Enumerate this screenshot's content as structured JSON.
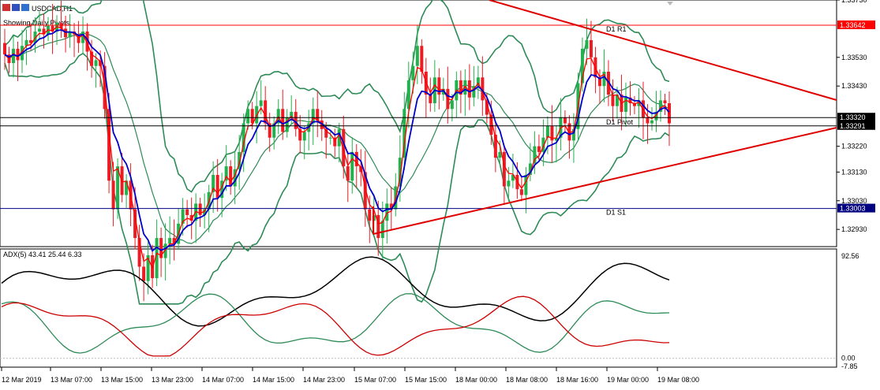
{
  "window": {
    "symbol_title": "USDCAD,H1",
    "subtitle": "Showing Daily Pivots."
  },
  "chart_data": [
    {
      "type": "candlestick",
      "title": "USDCAD,H1",
      "ylim": [
        1.3287,
        1.3373
      ],
      "y_ticks": [
        "1.33730",
        "1.33530",
        "1.33430",
        "1.33220",
        "1.33130",
        "1.33030",
        "1.32930"
      ],
      "x_ticks": [
        "12 Mar 2019",
        "13 Mar 07:00",
        "13 Mar 15:00",
        "13 Mar 23:00",
        "14 Mar 07:00",
        "14 Mar 15:00",
        "14 Mar 23:00",
        "15 Mar 07:00",
        "15 Mar 15:00",
        "18 Mar 00:00",
        "18 Mar 08:00",
        "18 Mar 16:00",
        "19 Mar 00:00",
        "19 Mar 08:00"
      ],
      "pivots": [
        {
          "name": "D1 R1",
          "value": 1.33642,
          "tag": "1.33642",
          "color": "#ff0000"
        },
        {
          "name": "D1 Pivot",
          "value": 1.3332,
          "tag": "1.33320",
          "color": "#000000"
        },
        {
          "name": "D1 S1",
          "value": 1.33003,
          "tag": "1.33003",
          "color": "#000080"
        }
      ],
      "current_price": {
        "value": 1.33291,
        "tag": "1.33291"
      },
      "close": [
        1.3354,
        1.3351,
        1.3356,
        1.3352,
        1.3357,
        1.3359,
        1.3358,
        1.3362,
        1.3363,
        1.3361,
        1.3364,
        1.3362,
        1.3365,
        1.3363,
        1.336,
        1.3362,
        1.3361,
        1.3358,
        1.3362,
        1.3355,
        1.335,
        1.3352,
        1.335,
        1.3335,
        1.331,
        1.33,
        1.3315,
        1.3305,
        1.331,
        1.33,
        1.329,
        1.328,
        1.3275,
        1.3284,
        1.3276,
        1.329,
        1.3283,
        1.3288,
        1.329,
        1.3288,
        1.3295,
        1.33,
        1.3298,
        1.3296,
        1.3302,
        1.3298,
        1.33,
        1.3306,
        1.3312,
        1.3304,
        1.331,
        1.3315,
        1.3308,
        1.3314,
        1.332,
        1.333,
        1.3335,
        1.333,
        1.3336,
        1.3338,
        1.333,
        1.3325,
        1.333,
        1.3335,
        1.3327,
        1.3332,
        1.3334,
        1.3328,
        1.3324,
        1.3327,
        1.333,
        1.3335,
        1.3331,
        1.3328,
        1.3325,
        1.3325,
        1.3322,
        1.3328,
        1.3315,
        1.331,
        1.332,
        1.3315,
        1.3313,
        1.33,
        1.3296,
        1.3298,
        1.329,
        1.3296,
        1.3302,
        1.33,
        1.3308,
        1.3318,
        1.3335,
        1.3345,
        1.335,
        1.3357,
        1.3348,
        1.334,
        1.3337,
        1.3346,
        1.334,
        1.3342,
        1.3335,
        1.3338,
        1.3345,
        1.334,
        1.3345,
        1.3339,
        1.3343,
        1.3346,
        1.3338,
        1.3333,
        1.3326,
        1.3318,
        1.332,
        1.3308,
        1.331,
        1.3312,
        1.3307,
        1.3305,
        1.3312,
        1.3316,
        1.3322,
        1.332,
        1.3325,
        1.3329,
        1.3324,
        1.3325,
        1.3332,
        1.333,
        1.3324,
        1.3328,
        1.3344,
        1.3356,
        1.3359,
        1.3353,
        1.3346,
        1.3343,
        1.3348,
        1.334,
        1.3336,
        1.334,
        1.3334,
        1.3339,
        1.3337,
        1.3336,
        1.3338,
        1.3332,
        1.333,
        1.3331,
        1.3334,
        1.3338,
        1.3337,
        1.333
      ],
      "series": [
        {
          "name": "",
          "kind": "ema-fast",
          "color": "#ff0000"
        },
        {
          "name": "",
          "kind": "ema-slow",
          "color": "#0000cc"
        },
        {
          "name": "",
          "kind": "bollinger-bands",
          "color": "#2e8b57"
        }
      ],
      "trendlines_color": "#e00000"
    },
    {
      "type": "line",
      "title": "ADX(5) 43.41 25.44 6.33",
      "ylim": [
        -7.85,
        92.56
      ],
      "y_ticks": [
        "92.56",
        "0.00",
        "-7.85"
      ],
      "series": [
        {
          "name": "",
          "color": "#000000"
        },
        {
          "name": "",
          "color": "#2e8b57"
        },
        {
          "name": "",
          "color": "#cc0000"
        }
      ],
      "adx_points": 14
    }
  ]
}
